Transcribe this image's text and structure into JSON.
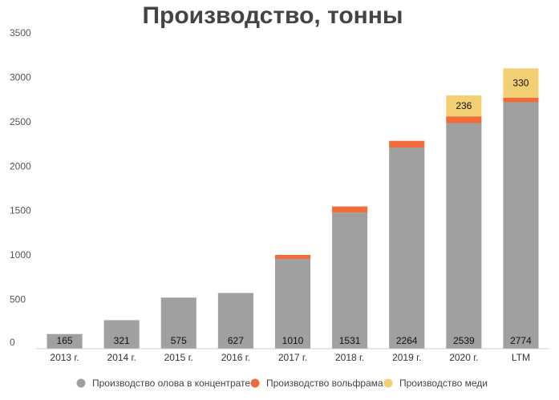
{
  "chart_data": {
    "type": "bar",
    "stacked": true,
    "title": "Производство, тонны",
    "categories": [
      "2013 г.",
      "2014 г.",
      "2015 г.",
      "2016 г.",
      "2017 г.",
      "2018 г.",
      "2019 г.",
      "2020 г.",
      "LTM"
    ],
    "ylim": [
      0,
      3500
    ],
    "yticks": [
      0,
      500,
      1000,
      1500,
      2000,
      2500,
      3000,
      3500
    ],
    "grid": false,
    "legend_position": "bottom",
    "series": [
      {
        "name": "Производство олова в концентрате",
        "color": "#a0a0a0",
        "values": [
          165,
          321,
          575,
          627,
          1010,
          1531,
          2264,
          2539,
          2774
        ],
        "labels": [
          "165",
          "321",
          "575",
          "627",
          "1010",
          "1531",
          "2264",
          "2539",
          "2774"
        ]
      },
      {
        "name": "Производство вольфрама",
        "color": "#f26b3a",
        "values": [
          0,
          0,
          0,
          0,
          45,
          70,
          75,
          75,
          50
        ],
        "labels": [
          "",
          "",
          "",
          "",
          "",
          "",
          "",
          "",
          ""
        ]
      },
      {
        "name": "Производство меди",
        "color": "#f3cf74",
        "values": [
          0,
          0,
          0,
          0,
          0,
          0,
          0,
          236,
          330
        ],
        "labels": [
          "",
          "",
          "",
          "",
          "",
          "",
          "",
          "236",
          "330"
        ]
      }
    ]
  }
}
